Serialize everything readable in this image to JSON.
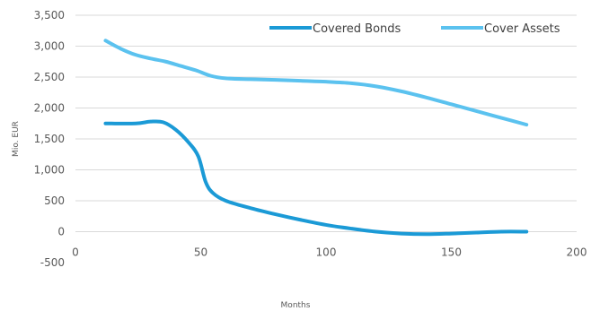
{
  "chart_data": {
    "type": "line",
    "title": "",
    "xlabel": "Months",
    "ylabel": "Mio. EUR",
    "xlim": [
      0,
      200
    ],
    "ylim": [
      -500,
      3500
    ],
    "x_ticks": [
      0,
      50,
      100,
      150,
      200
    ],
    "y_ticks": [
      -500,
      0,
      500,
      1000,
      1500,
      2000,
      2500,
      3000,
      3500
    ],
    "y_tick_labels": [
      "-500",
      "0",
      "500",
      "1,000",
      "1,500",
      "2,000",
      "2,500",
      "3,000",
      "3,500"
    ],
    "x_tick_labels": [
      "0",
      "50",
      "100",
      "150",
      "200"
    ],
    "grid": "horizontal",
    "legend_position": "top-right",
    "series": [
      {
        "name": "Covered Bonds",
        "color": "#1b9ad6",
        "points": [
          [
            12,
            1750
          ],
          [
            24,
            1750
          ],
          [
            30,
            1780
          ],
          [
            35,
            1770
          ],
          [
            40,
            1650
          ],
          [
            45,
            1450
          ],
          [
            49,
            1220
          ],
          [
            52,
            800
          ],
          [
            55,
            620
          ],
          [
            60,
            500
          ],
          [
            70,
            380
          ],
          [
            80,
            280
          ],
          [
            90,
            190
          ],
          [
            100,
            110
          ],
          [
            110,
            50
          ],
          [
            120,
            0
          ],
          [
            130,
            -30
          ],
          [
            140,
            -40
          ],
          [
            150,
            -30
          ],
          [
            160,
            -15
          ],
          [
            170,
            0
          ],
          [
            180,
            0
          ]
        ]
      },
      {
        "name": "Cover Assets",
        "color": "#5bc2ef",
        "points": [
          [
            12,
            3090
          ],
          [
            18,
            2960
          ],
          [
            24,
            2860
          ],
          [
            30,
            2800
          ],
          [
            36,
            2750
          ],
          [
            42,
            2680
          ],
          [
            48,
            2610
          ],
          [
            54,
            2520
          ],
          [
            60,
            2480
          ],
          [
            70,
            2465
          ],
          [
            80,
            2455
          ],
          [
            90,
            2440
          ],
          [
            100,
            2425
          ],
          [
            110,
            2400
          ],
          [
            120,
            2350
          ],
          [
            130,
            2270
          ],
          [
            140,
            2170
          ],
          [
            150,
            2060
          ],
          [
            160,
            1950
          ],
          [
            170,
            1840
          ],
          [
            180,
            1730
          ]
        ]
      }
    ]
  }
}
